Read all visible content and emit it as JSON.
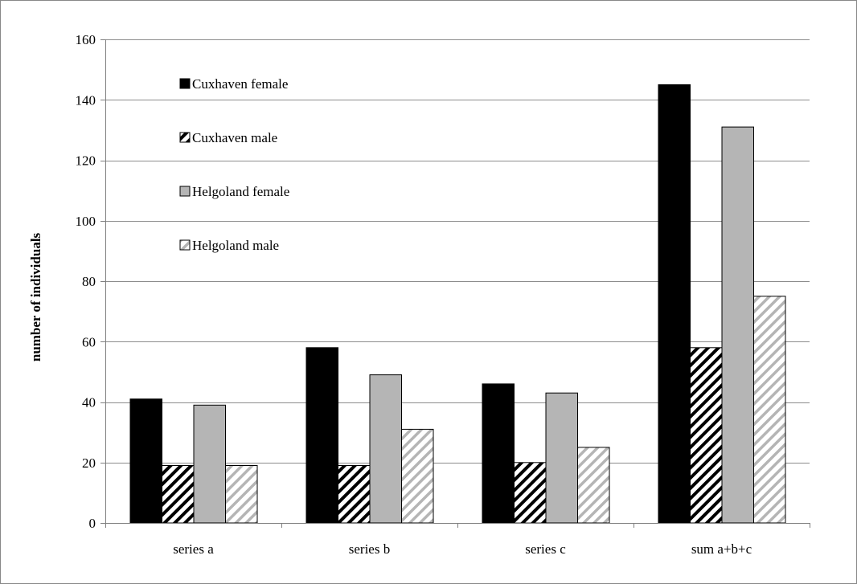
{
  "chart_data": {
    "type": "bar",
    "title": "",
    "xlabel": "",
    "ylabel": "number  of individuals",
    "ylim": [
      0,
      160
    ],
    "yticks": [
      0,
      20,
      40,
      60,
      80,
      100,
      120,
      140,
      160
    ],
    "grid": true,
    "legend_position": "top-left inside plot",
    "categories": [
      "series a",
      "series b",
      "series c",
      "sum a+b+c"
    ],
    "series": [
      {
        "name": "Cuxhaven female",
        "values": [
          41,
          58,
          46,
          145
        ],
        "fill": "#000000",
        "pattern": "solid"
      },
      {
        "name": "Cuxhaven male",
        "values": [
          19,
          19,
          20,
          58
        ],
        "fill": "#000000",
        "pattern": "dense-diagonal-hatch"
      },
      {
        "name": "Helgoland female",
        "values": [
          39,
          49,
          43,
          131
        ],
        "fill": "#b5b5b5",
        "pattern": "solid"
      },
      {
        "name": "Helgoland male",
        "values": [
          19,
          31,
          25,
          75
        ],
        "fill": "#b5b5b5",
        "pattern": "light-diagonal-hatch"
      }
    ]
  },
  "colors": {
    "gridline": "#8c8c8c",
    "axis": "#7f7f7f",
    "frame": "#888888"
  }
}
